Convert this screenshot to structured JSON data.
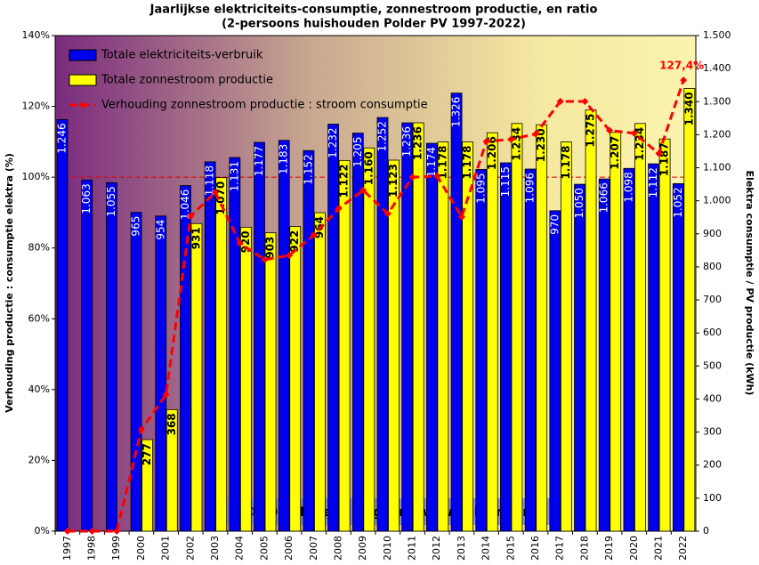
{
  "chart_data": {
    "type": "bar",
    "title": "Jaarlijkse  elektriciteits-consumptie,  zonnestroom productie,  en ratio",
    "subtitle": "(2-persoons huishouden Polder PV 1997-2022)",
    "y_label": "Verhouding productie : consumptie elektra (%)",
    "y2_label": "Elektra consumptie / PV productie (kWh)",
    "watermark": "© 2023 Peter J. Segaar  /  www.polderpv.nl",
    "categories": [
      "1997",
      "1998",
      "1999",
      "2000",
      "2001",
      "2002",
      "2003",
      "2004",
      "2005",
      "2006",
      "2007",
      "2008",
      "2009",
      "2010",
      "2011",
      "2012",
      "2013",
      "2014",
      "2015",
      "2016",
      "2017",
      "2018",
      "2019",
      "2020",
      "2021",
      "2022"
    ],
    "ylim": [
      0,
      140
    ],
    "yticks": [
      {
        "value": 0,
        "label": "0%"
      },
      {
        "value": 20,
        "label": "20%"
      },
      {
        "value": 40,
        "label": "40%"
      },
      {
        "value": 60,
        "label": "60%"
      },
      {
        "value": 80,
        "label": "80%"
      },
      {
        "value": 100,
        "label": "100%"
      },
      {
        "value": 120,
        "label": "120%"
      },
      {
        "value": 140,
        "label": "140%"
      }
    ],
    "y2lim": [
      0,
      1500
    ],
    "y2ticks": [
      0,
      100,
      200,
      300,
      400,
      500,
      600,
      700,
      800,
      900,
      {
        "value": 1000,
        "label": "1.000"
      },
      {
        "value": 1100,
        "label": "1.100"
      },
      {
        "value": 1200,
        "label": "1.200"
      },
      {
        "value": 1300,
        "label": "1.300"
      },
      {
        "value": 1400,
        "label": "1.400"
      },
      {
        "value": 1500,
        "label": "1.500"
      }
    ],
    "reference_line": 100,
    "reference_color": "#dd0000",
    "series": [
      {
        "name": "Totale elektriciteits-verbruik",
        "color": "#0000ee",
        "axis": "y2",
        "values": [
          1246,
          1063,
          1055,
          965,
          954,
          1046,
          1118,
          1131,
          1177,
          1183,
          1152,
          1232,
          1205,
          1252,
          1236,
          1174,
          1326,
          1095,
          1115,
          1096,
          970,
          1050,
          1066,
          1098,
          1112,
          1052
        ],
        "value_labels": [
          "1.246",
          "1.063",
          "1.055",
          "965",
          "954",
          "1.046",
          "1.118",
          "1.131",
          "1.177",
          "1.183",
          "1.152",
          "1.232",
          "1.205",
          "1.252",
          "1.236",
          "1.174",
          "1.326",
          "1.095",
          "1.115",
          "1.096",
          "970",
          "1.050",
          "1.066",
          "1.098",
          "1.112",
          "1.052"
        ]
      },
      {
        "name": "Totale zonnestroom productie",
        "color": "#ffff00",
        "axis": "y2",
        "values": [
          null,
          null,
          null,
          277,
          368,
          931,
          1070,
          920,
          903,
          922,
          964,
          1122,
          1160,
          1123,
          1236,
          1178,
          1178,
          1206,
          1234,
          1230,
          1178,
          1275,
          1207,
          1234,
          1187,
          1340
        ],
        "value_labels": [
          null,
          null,
          null,
          "277",
          "368",
          "931",
          "1.070",
          "920",
          "903",
          "922",
          "964",
          "1.122",
          "1.160",
          "1.123",
          "1.236",
          "1.178",
          "1.178",
          "1.206",
          "1.234",
          "1.230",
          "1.178",
          "1.275",
          "1.207",
          "1.234",
          "1.187",
          "1.340"
        ]
      },
      {
        "name": "Verhouding zonnestroom productie : stroom consumptie",
        "color": "#ff0000",
        "type": "line",
        "values": [
          0,
          0,
          0,
          28.7,
          38.6,
          89.0,
          95.7,
          81.3,
          76.7,
          77.9,
          83.7,
          91.1,
          96.3,
          89.7,
          100,
          100.3,
          88.8,
          110.1,
          110.7,
          112.2,
          121.4,
          121.4,
          113.2,
          112.4,
          106.7,
          127.4
        ],
        "value_labels": [
          null,
          null,
          null,
          null,
          null,
          null,
          null,
          null,
          null,
          null,
          null,
          null,
          null,
          null,
          null,
          null,
          null,
          null,
          null,
          null,
          null,
          null,
          null,
          null,
          null,
          "127,4%"
        ]
      }
    ]
  }
}
